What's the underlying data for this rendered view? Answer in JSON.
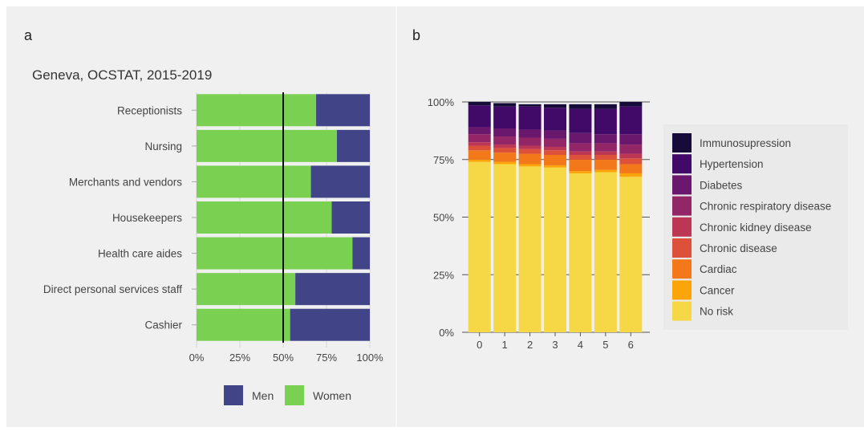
{
  "panels": {
    "a": {
      "letter": "a"
    },
    "b": {
      "letter": "b"
    }
  },
  "chart_data": [
    {
      "type": "bar",
      "orientation": "horizontal",
      "stacked": true,
      "title": "Geneva, OCSTAT, 2015-2019",
      "categories": [
        "Receptionists",
        "Nursing",
        "Merchants and vendors",
        "Housekeepers",
        "Health care aides",
        "Direct personal services staff",
        "Cashier"
      ],
      "series": [
        {
          "name": "Women",
          "color": "#7ad151",
          "values": [
            0.69,
            0.81,
            0.66,
            0.78,
            0.9,
            0.57,
            0.54
          ]
        },
        {
          "name": "Men",
          "color": "#414487",
          "values": [
            0.31,
            0.19,
            0.34,
            0.22,
            0.1,
            0.43,
            0.46
          ]
        }
      ],
      "xlim": [
        0,
        1
      ],
      "x_ticks": [
        "0%",
        "25%",
        "50%",
        "75%",
        "100%"
      ],
      "reference_line": 0.5,
      "legend": {
        "position": "bottom",
        "order": [
          "Men",
          "Women"
        ]
      },
      "grid": true
    },
    {
      "type": "bar",
      "stacked": true,
      "categories": [
        "0",
        "1",
        "2",
        "3",
        "4",
        "5",
        "6"
      ],
      "series": [
        {
          "name": "No risk",
          "color": "#f6d746",
          "values": [
            0.74,
            0.73,
            0.72,
            0.715,
            0.69,
            0.695,
            0.675
          ]
        },
        {
          "name": "Cancer",
          "color": "#fca50a",
          "values": [
            0.01,
            0.01,
            0.01,
            0.01,
            0.01,
            0.01,
            0.015
          ]
        },
        {
          "name": "Cardiac",
          "color": "#f37819",
          "values": [
            0.04,
            0.04,
            0.045,
            0.045,
            0.05,
            0.045,
            0.04
          ]
        },
        {
          "name": "Chronic disease",
          "color": "#dd513a",
          "values": [
            0.02,
            0.02,
            0.02,
            0.02,
            0.02,
            0.02,
            0.025
          ]
        },
        {
          "name": "Chronic kidney disease",
          "color": "#bc3754",
          "values": [
            0.015,
            0.015,
            0.015,
            0.015,
            0.015,
            0.015,
            0.02
          ]
        },
        {
          "name": "Chronic respiratory disease",
          "color": "#932667",
          "values": [
            0.035,
            0.035,
            0.035,
            0.035,
            0.035,
            0.035,
            0.04
          ]
        },
        {
          "name": "Diabetes",
          "color": "#6a176e",
          "values": [
            0.03,
            0.035,
            0.035,
            0.035,
            0.045,
            0.04,
            0.045
          ]
        },
        {
          "name": "Hypertension",
          "color": "#420a68",
          "values": [
            0.095,
            0.095,
            0.1,
            0.1,
            0.105,
            0.11,
            0.12
          ]
        },
        {
          "name": "Immunosupression",
          "color": "#160b39",
          "values": [
            0.015,
            0.015,
            0.01,
            0.015,
            0.02,
            0.02,
            0.02
          ]
        }
      ],
      "ylim": [
        0,
        1
      ],
      "y_ticks": [
        "0%",
        "25%",
        "50%",
        "75%",
        "100%"
      ],
      "legend": {
        "position": "right",
        "order": [
          "Immunosupression",
          "Hypertension",
          "Diabetes",
          "Chronic respiratory disease",
          "Chronic kidney disease",
          "Chronic disease",
          "Cardiac",
          "Cancer",
          "No risk"
        ]
      },
      "grid": true
    }
  ]
}
